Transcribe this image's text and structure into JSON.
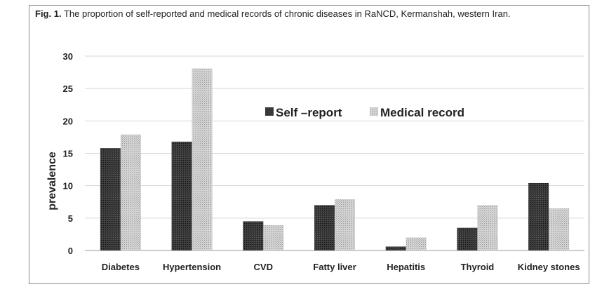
{
  "figure": {
    "caption_label": "Fig. 1.",
    "caption_text": "The proportion of self-reported and medical records of chronic diseases in RaNCD, Kermanshah, western Iran."
  },
  "chart_data": {
    "type": "bar",
    "title": "",
    "xlabel": "",
    "ylabel": "prevalence",
    "ylim": [
      0,
      30
    ],
    "yticks": [
      0,
      5,
      10,
      15,
      20,
      25,
      30
    ],
    "grid": true,
    "legend_position": "top-center",
    "categories": [
      "Diabetes",
      "Hypertension",
      "CVD",
      "Fatty liver",
      "Hepatitis",
      "Thyroid",
      "Kidney stones"
    ],
    "series": [
      {
        "name": "Self –report",
        "color": "#2b2b2b",
        "values": [
          15.8,
          16.8,
          4.5,
          7.0,
          0.6,
          3.5,
          10.4
        ]
      },
      {
        "name": "Medical record",
        "color": "#c8c8c8",
        "values": [
          17.9,
          28.1,
          3.9,
          7.9,
          2.0,
          7.0,
          6.5
        ]
      }
    ]
  }
}
